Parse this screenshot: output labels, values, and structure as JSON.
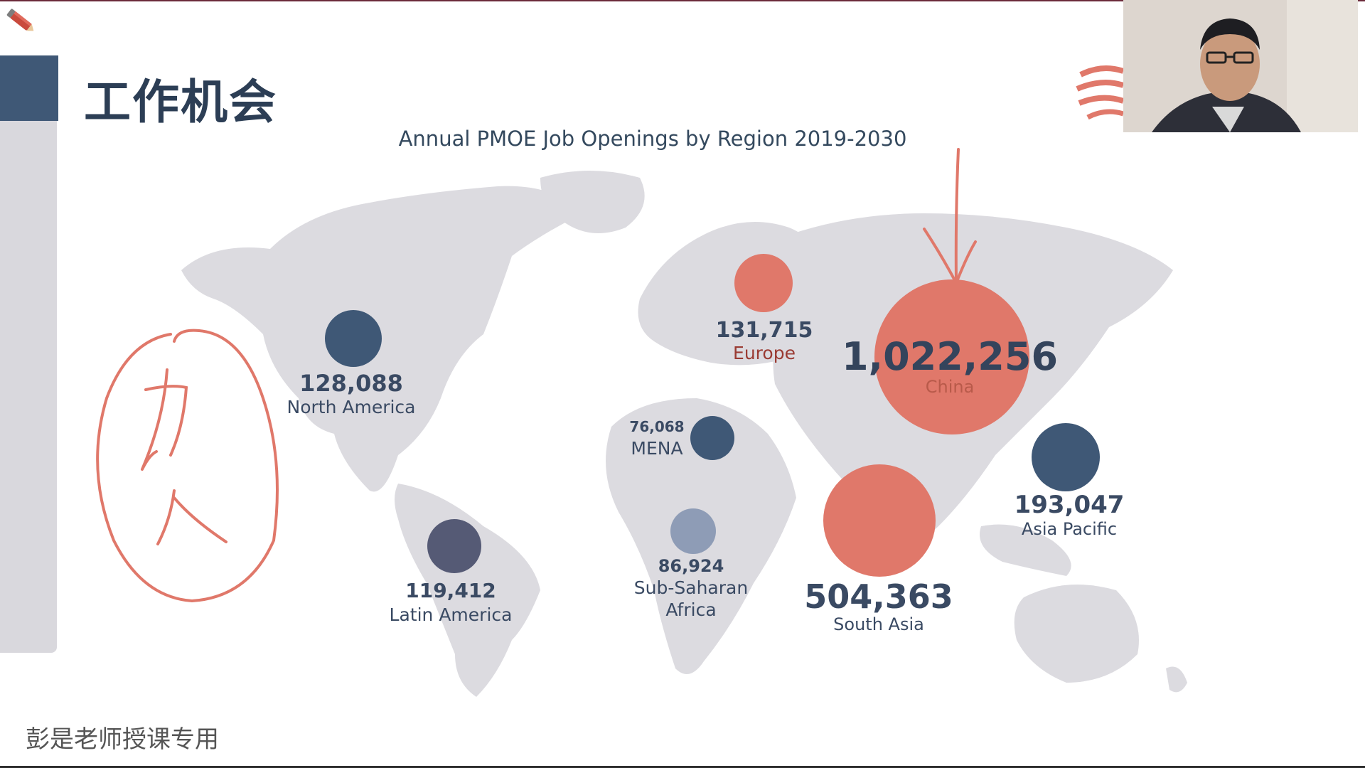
{
  "slide": {
    "title": "工作机会",
    "watermark": "彭是老师授课专用"
  },
  "chart_data": {
    "type": "bubble-map",
    "title": "Annual PMOE Job Openings by Region 2019-2030",
    "regions": [
      {
        "name": "North America",
        "value": 128088,
        "label": "128,088",
        "color": "#3f5876"
      },
      {
        "name": "Europe",
        "value": 131715,
        "label": "131,715",
        "color": "#e0786a"
      },
      {
        "name": "China",
        "value": 1022256,
        "label": "1,022,256",
        "color": "#e0786a"
      },
      {
        "name": "MENA",
        "value": 76068,
        "label": "76,068",
        "color": "#3f5876"
      },
      {
        "name": "Asia Pacific",
        "value": 193047,
        "label": "193,047",
        "color": "#3f5876"
      },
      {
        "name": "Latin America",
        "value": 119412,
        "label": "119,412",
        "color": "#555a75"
      },
      {
        "name": "Sub-Saharan Africa",
        "value": 86924,
        "label": "86,924",
        "color": "#8e9cb6",
        "name_lines": [
          "Sub-Saharan",
          "Africa"
        ]
      },
      {
        "name": "South Asia",
        "value": 504363,
        "label": "504,363",
        "color": "#e0786a"
      }
    ]
  },
  "annotation": {
    "handwriting": "力人",
    "color": "#e0786a"
  },
  "colors": {
    "navy": "#3f5876",
    "coral": "#e0786a",
    "map_gray": "#dcdbe0",
    "side_panel": "#d9d8dd"
  },
  "icons": {
    "top_left": "pencil-icon",
    "top_right": "brand-logo-icon"
  }
}
